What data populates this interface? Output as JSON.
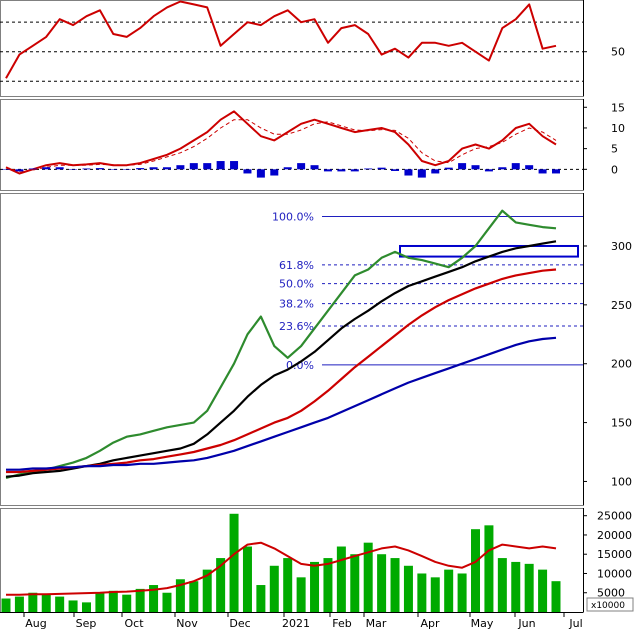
{
  "chart_data": {
    "type": "line",
    "months": [
      "Aug",
      "Sep",
      "Oct",
      "Nov",
      "Dec",
      "2021",
      "Feb",
      "Mar",
      "Apr",
      "May",
      "Jun",
      "Jul"
    ],
    "panels": [
      {
        "id": "oscillator",
        "type": "line",
        "ticks": [
          "50"
        ],
        "ylim": [
          20,
          85
        ],
        "reference_levels": [
          30,
          50,
          70
        ],
        "series": [
          {
            "color": "#cc0000",
            "y": [
              32,
              48,
              54,
              60,
              72,
              68,
              74,
              78,
              62,
              60,
              66,
              74,
              80,
              84,
              82,
              80,
              54,
              62,
              70,
              68,
              74,
              78,
              70,
              72,
              56,
              66,
              68,
              62,
              48,
              52,
              46,
              56,
              56,
              54,
              56,
              50,
              44,
              66,
              72,
              82,
              52,
              54
            ]
          }
        ]
      },
      {
        "id": "macd",
        "type": "line",
        "ticks": [
          "15",
          "10",
          "5",
          "0"
        ],
        "ylim": [
          -5,
          17
        ],
        "series": [
          {
            "color": "#cc0000",
            "y": [
              0.5,
              -1,
              0,
              1,
              1.5,
              1,
              1.2,
              1.5,
              1,
              1,
              1.5,
              2.5,
              3.5,
              5,
              7,
              9,
              12,
              14,
              11,
              8,
              7,
              9,
              11,
              12,
              11,
              10,
              9,
              9.5,
              10,
              9,
              6,
              2,
              1,
              2,
              5,
              6,
              5,
              7,
              10,
              11,
              8,
              6
            ]
          },
          {
            "color": "#cc0000",
            "style": "dashed",
            "y": [
              0.5,
              -0.5,
              -0.2,
              0.5,
              1,
              1,
              1,
              1.2,
              1.1,
              1,
              1.2,
              2,
              3,
              4,
              5.5,
              7.5,
              10,
              12,
              12,
              10,
              8.5,
              8.5,
              9.5,
              11,
              11.5,
              10.5,
              9.5,
              9.3,
              9.6,
              9.4,
              7.5,
              4,
              2,
              1.6,
              3.5,
              5,
              5.5,
              6.5,
              8.5,
              10,
              9,
              7
            ]
          },
          {
            "color": "#0000cc",
            "type": "bar",
            "y": [
              0,
              -0.5,
              0.2,
              0.5,
              0.5,
              0,
              0.2,
              0.3,
              -0.1,
              0,
              0.3,
              0.5,
              0.5,
              1,
              1.5,
              1.5,
              2,
              2,
              -1,
              -2,
              -1.5,
              0.5,
              1.5,
              1,
              -0.5,
              -0.5,
              -0.5,
              0.2,
              0.4,
              -0.4,
              -1.5,
              -2,
              -1,
              0.4,
              1.5,
              1,
              -0.5,
              0.5,
              1.5,
              1,
              -1,
              -1
            ]
          }
        ]
      },
      {
        "id": "price",
        "type": "line",
        "ticks": [
          "300",
          "250",
          "200",
          "150",
          "100"
        ],
        "ylim": [
          80,
          345
        ],
        "fibonacci": [
          {
            "label": "100.0%",
            "value": 325
          },
          {
            "label": "61.8%",
            "value": 284
          },
          {
            "label": "50.0%",
            "value": 268
          },
          {
            "label": "38.2%",
            "value": 251
          },
          {
            "label": "23.6%",
            "value": 232
          },
          {
            "label": "0.0%",
            "value": 199
          }
        ],
        "zone": {
          "from": 291,
          "to": 300
        },
        "series": [
          {
            "color": "#2e8b2e",
            "y": [
              103,
              106,
              108,
              110,
              113,
              116,
              120,
              126,
              133,
              138,
              140,
              143,
              146,
              148,
              150,
              160,
              180,
              200,
              225,
              240,
              215,
              205,
              215,
              230,
              245,
              260,
              275,
              280,
              290,
              295,
              290,
              288,
              285,
              282,
              290,
              300,
              315,
              330,
              320,
              318,
              316,
              315
            ]
          },
          {
            "color": "#000000",
            "y": [
              104,
              105,
              107,
              108,
              109,
              111,
              113,
              115,
              118,
              120,
              122,
              124,
              126,
              128,
              132,
              140,
              150,
              160,
              172,
              182,
              190,
              195,
              202,
              210,
              220,
              230,
              238,
              245,
              253,
              260,
              266,
              270,
              274,
              278,
              282,
              287,
              291,
              295,
              298,
              300,
              302,
              304
            ]
          },
          {
            "color": "#cc0000",
            "y": [
              108,
              108,
              109,
              110,
              111,
              112,
              113,
              114,
              115,
              116,
              118,
              119,
              121,
              123,
              125,
              128,
              131,
              135,
              140,
              145,
              150,
              154,
              160,
              168,
              177,
              187,
              197,
              206,
              215,
              224,
              233,
              241,
              248,
              254,
              259,
              264,
              268,
              272,
              275,
              277,
              279,
              280
            ]
          },
          {
            "color": "#0000aa",
            "y": [
              110,
              110,
              111,
              111,
              112,
              112,
              113,
              113,
              114,
              114,
              115,
              115,
              116,
              117,
              118,
              120,
              123,
              126,
              130,
              134,
              138,
              142,
              146,
              150,
              154,
              159,
              164,
              169,
              174,
              179,
              184,
              188,
              192,
              196,
              200,
              204,
              208,
              212,
              216,
              219,
              221,
              222
            ]
          }
        ]
      },
      {
        "id": "volume",
        "type": "bar",
        "ticks": [
          "25000",
          "20000",
          "15000",
          "10000",
          "5000"
        ],
        "multiplier": "x10000",
        "ylim": [
          0,
          27000
        ],
        "series": [
          {
            "color": "#00aa00",
            "type": "bar",
            "y": [
              3500,
              4000,
              5000,
              4500,
              4000,
              3000,
              2500,
              5000,
              5500,
              4500,
              6000,
              7000,
              5000,
              8500,
              8000,
              11000,
              14000,
              25500,
              17000,
              7000,
              12000,
              14000,
              9000,
              13000,
              14000,
              17000,
              15000,
              18000,
              15000,
              14000,
              12000,
              10000,
              9000,
              11000,
              10000,
              21500,
              22500,
              14000,
              13000,
              12500,
              11000,
              8000
            ]
          },
          {
            "color": "#cc0000",
            "y": [
              4500,
              4500,
              4600,
              4600,
              4700,
              4800,
              4900,
              5000,
              5200,
              5300,
              5500,
              5800,
              6200,
              7000,
              8000,
              9500,
              12000,
              15000,
              17500,
              18000,
              16500,
              14500,
              12500,
              12000,
              12500,
              13500,
              14500,
              15500,
              16500,
              17000,
              16000,
              14500,
              13000,
              12000,
              11500,
              13000,
              16000,
              17500,
              17000,
              16500,
              17000,
              16500
            ]
          }
        ]
      }
    ]
  }
}
